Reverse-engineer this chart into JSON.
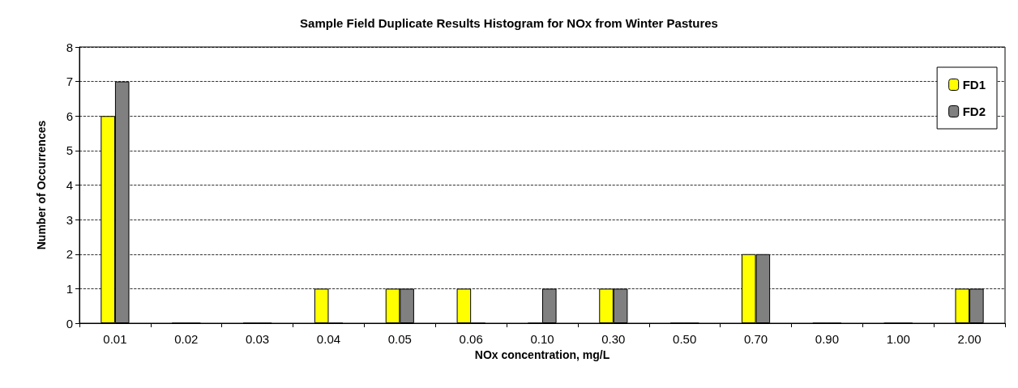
{
  "chart_data": {
    "type": "bar",
    "title": "Sample Field Duplicate Results Histogram for NOx from Winter Pastures",
    "xlabel": "NOx concentration, mg/L",
    "ylabel": "Number of Occurrences",
    "categories": [
      "0.01",
      "0.02",
      "0.03",
      "0.04",
      "0.05",
      "0.06",
      "0.10",
      "0.30",
      "0.50",
      "0.70",
      "0.90",
      "1.00",
      "2.00"
    ],
    "series": [
      {
        "name": "FD1",
        "color": "#ffff00",
        "values": [
          6,
          0,
          0,
          1,
          1,
          1,
          0,
          1,
          0,
          2,
          0,
          0,
          1
        ]
      },
      {
        "name": "FD2",
        "color": "#808080",
        "values": [
          7,
          0,
          0,
          0,
          1,
          0,
          1,
          1,
          0,
          2,
          0,
          0,
          1
        ]
      }
    ],
    "ylim": [
      0,
      8
    ],
    "yticks": [
      0,
      1,
      2,
      3,
      4,
      5,
      6,
      7,
      8
    ],
    "grid": "y",
    "legend": "top right"
  }
}
